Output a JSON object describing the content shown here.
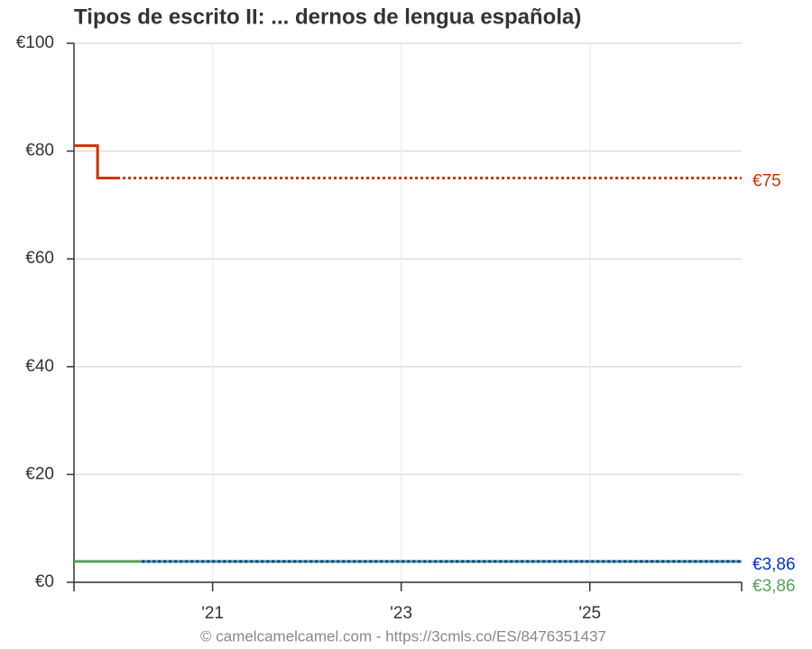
{
  "chart_data": {
    "type": "line",
    "title": "Tipos de escrito II: ... dernos de lengua española)",
    "footer": "© camelcamelcamel.com - https://3cmls.co/ES/8476351437",
    "xlim": [
      2019.53,
      2026.61
    ],
    "xticks": [
      {
        "value": 2021,
        "label": "'21"
      },
      {
        "value": 2023,
        "label": "'23"
      },
      {
        "value": 2025,
        "label": "'25"
      }
    ],
    "ylim": [
      0,
      100
    ],
    "yticks": [
      {
        "value": 0,
        "label": "€0"
      },
      {
        "value": 20,
        "label": "€20"
      },
      {
        "value": 40,
        "label": "€40"
      },
      {
        "value": 60,
        "label": "€60"
      },
      {
        "value": 80,
        "label": "€80"
      },
      {
        "value": 100,
        "label": "€100"
      }
    ],
    "grid": true,
    "series": [
      {
        "color": "#5aa05a",
        "dashed": false,
        "x": [
          2019.53,
          2026.61
        ],
        "values": [
          3.86,
          3.86
        ]
      },
      {
        "color": "#0033cc",
        "dashed": true,
        "x": [
          2020.25,
          2026.61
        ],
        "values": [
          3.86,
          3.86
        ]
      },
      {
        "color": "#cc3300",
        "dashed": false,
        "x": [
          2019.53,
          2019.78,
          2019.78,
          2019.99
        ],
        "values": [
          81,
          81,
          75,
          75
        ]
      },
      {
        "color": "#cc3300",
        "dashed": true,
        "x": [
          2019.99,
          2026.61
        ],
        "values": [
          75,
          75
        ]
      }
    ],
    "end_labels": [
      {
        "value": 75,
        "label": "€75",
        "color": "#cc3300"
      },
      {
        "value": 3.86,
        "label": "€3,86",
        "color": "#0033cc"
      },
      {
        "value": 3.86,
        "label": "€3,86",
        "color": "#5aa05a"
      }
    ]
  }
}
